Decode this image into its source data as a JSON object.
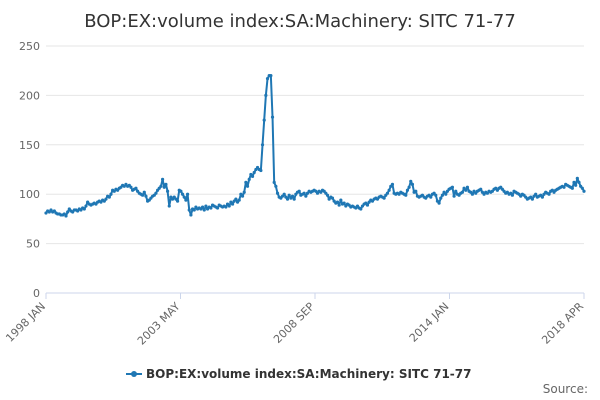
{
  "chart_data": {
    "type": "line",
    "title": "BOP:EX:volume index:SA:Machinery: SITC 71-77",
    "xlabel": "",
    "ylabel": "",
    "ylim": [
      0,
      250
    ],
    "y_ticks": [
      0,
      50,
      100,
      150,
      200,
      250
    ],
    "x_tick_labels": [
      "1998 JAN",
      "2003 MAY",
      "2008 SEP",
      "2014 JAN",
      "2018 APR"
    ],
    "x_range": [
      "1998 JAN",
      "2018 APR"
    ],
    "grid": true,
    "legend": "bottom-center",
    "series": [
      {
        "name": "BOP:EX:volume index:SA:Machinery: SITC 71-77",
        "color": "#1f77b4",
        "monthly_from": "1998 JAN",
        "values": [
          81,
          83,
          82,
          84,
          82,
          83,
          81,
          80,
          80,
          79,
          79,
          80,
          78,
          82,
          85,
          83,
          82,
          84,
          84,
          83,
          85,
          84,
          86,
          85,
          88,
          92,
          90,
          89,
          90,
          91,
          90,
          92,
          93,
          92,
          94,
          93,
          95,
          98,
          97,
          100,
          104,
          103,
          105,
          104,
          106,
          107,
          109,
          108,
          110,
          108,
          109,
          107,
          104,
          105,
          106,
          103,
          101,
          100,
          99,
          102,
          98,
          93,
          94,
          96,
          98,
          99,
          101,
          104,
          106,
          108,
          115,
          107,
          110,
          103,
          88,
          97,
          95,
          97,
          95,
          93,
          104,
          103,
          100,
          97,
          94,
          100,
          84,
          79,
          85,
          84,
          87,
          85,
          86,
          85,
          87,
          84,
          88,
          85,
          87,
          86,
          89,
          88,
          87,
          86,
          89,
          88,
          87,
          88,
          87,
          90,
          88,
          92,
          90,
          93,
          95,
          92,
          94,
          100,
          98,
          102,
          112,
          108,
          115,
          120,
          118,
          122,
          125,
          127,
          125,
          124,
          150,
          175,
          200,
          217,
          220,
          220,
          178,
          112,
          108,
          101,
          97,
          96,
          98,
          100,
          97,
          95,
          99,
          96,
          98,
          95,
          100,
          102,
          103,
          99,
          100,
          101,
          98,
          101,
          103,
          102,
          103,
          104,
          103,
          101,
          103,
          102,
          104,
          103,
          101,
          99,
          95,
          97,
          96,
          93,
          91,
          92,
          89,
          94,
          90,
          91,
          88,
          90,
          89,
          87,
          88,
          87,
          86,
          88,
          86,
          85,
          88,
          90,
          91,
          89,
          92,
          94,
          93,
          95,
          96,
          95,
          97,
          98,
          97,
          96,
          99,
          101,
          104,
          108,
          110,
          101,
          100,
          101,
          100,
          102,
          101,
          100,
          99,
          104,
          107,
          113,
          110,
          102,
          103,
          98,
          97,
          98,
          99,
          97,
          96,
          98,
          99,
          97,
          100,
          101,
          99,
          93,
          91,
          96,
          99,
          102,
          100,
          103,
          105,
          106,
          107,
          98,
          103,
          100,
          99,
          101,
          102,
          106,
          104,
          107,
          103,
          102,
          100,
          103,
          101,
          103,
          104,
          105,
          102,
          100,
          102,
          101,
          103,
          102,
          103,
          105,
          106,
          104,
          106,
          107,
          105,
          103,
          101,
          102,
          100,
          101,
          99,
          103,
          102,
          101,
          100,
          98,
          100,
          99,
          97,
          95,
          96,
          97,
          95,
          98,
          100,
          97,
          98,
          99,
          97,
          100,
          102,
          101,
          100,
          103,
          104,
          102,
          104,
          105,
          106,
          107,
          108,
          107,
          110,
          109,
          108,
          107,
          106,
          112,
          109,
          116,
          112,
          108,
          106,
          103
        ]
      }
    ]
  },
  "legend": {
    "label": "BOP:EX:volume index:SA:Machinery: SITC 71-77"
  },
  "source": {
    "label": "Source:"
  }
}
